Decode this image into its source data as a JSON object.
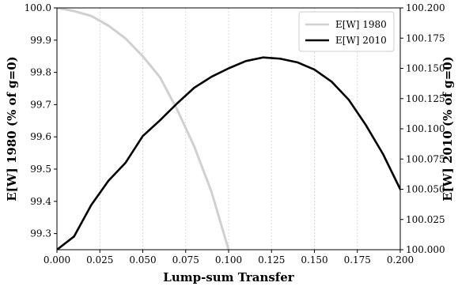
{
  "chart_data": {
    "type": "line",
    "xlabel": "Lump-sum Transfer",
    "ylabel_left": "E[W] 1980 (% of g=0)",
    "ylabel_right": "E[W] 2010 (% of g=0)",
    "xlim": [
      0.0,
      0.2
    ],
    "ylim_left": [
      99.25,
      100.0
    ],
    "ylim_right": [
      100.0,
      100.2
    ],
    "grid": "vertical-dotted",
    "legend_placement": "top-right",
    "x_ticks": [
      "0.000",
      "0.025",
      "0.050",
      "0.075",
      "0.100",
      "0.125",
      "0.150",
      "0.175",
      "0.200"
    ],
    "y_ticks_left": [
      "99.3",
      "99.4",
      "99.5",
      "99.6",
      "99.7",
      "99.8",
      "99.9",
      "100.0"
    ],
    "y_ticks_right": [
      "100.000",
      "100.025",
      "100.050",
      "100.075",
      "100.100",
      "100.125",
      "100.150",
      "100.175",
      "100.200"
    ],
    "series": [
      {
        "name": "E[W] 1980",
        "axis": "left",
        "color": "#d0d0d0",
        "x": [
          0.0,
          0.01,
          0.02,
          0.03,
          0.04,
          0.05,
          0.06,
          0.07,
          0.08,
          0.09,
          0.1
        ],
        "y": [
          100.0,
          99.99,
          99.975,
          99.945,
          99.905,
          99.85,
          99.785,
          99.685,
          99.57,
          99.43,
          99.25
        ]
      },
      {
        "name": "E[W] 2010",
        "axis": "right",
        "color": "#000000",
        "x": [
          0.0,
          0.01,
          0.02,
          0.03,
          0.04,
          0.05,
          0.06,
          0.07,
          0.08,
          0.09,
          0.1,
          0.11,
          0.12,
          0.13,
          0.14,
          0.15,
          0.16,
          0.17,
          0.18,
          0.19,
          0.2
        ],
        "y": [
          100.0,
          100.011,
          100.037,
          100.057,
          100.072,
          100.094,
          100.107,
          100.121,
          100.134,
          100.143,
          100.15,
          100.156,
          100.159,
          100.158,
          100.155,
          100.149,
          100.139,
          100.124,
          100.103,
          100.079,
          100.05
        ]
      }
    ]
  }
}
